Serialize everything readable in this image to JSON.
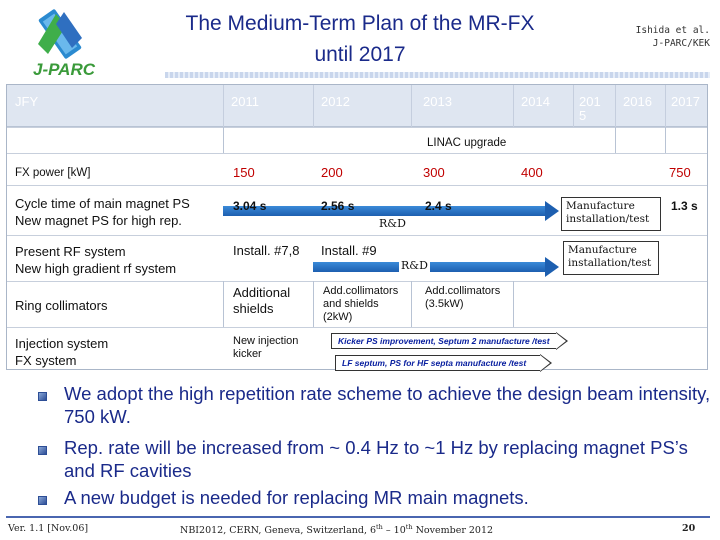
{
  "header": {
    "logo_text": "J-PARC",
    "title_line1": "The Medium-Term Plan of the MR-FX",
    "title_line2": "until 2017",
    "author_line1": "Ishida et al.",
    "author_line2": "J-PARC/KEK"
  },
  "table": {
    "header": {
      "jfy": "JFY",
      "y2011": "2011",
      "y2012": "2012",
      "y2013": "2013",
      "y2014": "2014",
      "y2015a": "201",
      "y2015b": "5",
      "y2016": "2016",
      "y2017": "2017"
    },
    "linac": "LINAC upgrade",
    "rows": {
      "fx_power": {
        "label": "FX power [kW]",
        "v2011": "150",
        "v2012": "200",
        "v2013": "300",
        "v2014": "400",
        "v2017": "750"
      },
      "cycle": {
        "label1": "Cycle time of main magnet PS",
        "label2": "New magnet PS for high rep.",
        "v2011": "3.04 s",
        "v2012": "2.56 s",
        "v2013": "2.4 s",
        "rd": "R&D",
        "box1": "Manufacture",
        "box2": "installation/test",
        "v2017": "1.3 s"
      },
      "rf": {
        "label1": "Present RF system",
        "label2": "New high gradient rf system",
        "v2011": "Install. #7,8",
        "v2012": "Install. #9",
        "rd": "R&D",
        "box1": "Manufacture",
        "box2": "installation/test"
      },
      "ring": {
        "label": "Ring collimators",
        "c2011a": "Additional",
        "c2011b": "shields",
        "c2012a": "Add.collimators",
        "c2012b": "and shields",
        "c2012c": "(2kW)",
        "c2013a": "Add.collimators",
        "c2013b": "(3.5kW)"
      },
      "injection": {
        "label1": "Injection system",
        "label2": "FX system",
        "c2011a": "New injection",
        "c2011b": "kicker",
        "kicker": "Kicker PS improvement, Septum 2 manufacture /test",
        "lf": "LF septum, PS for HF septa manufacture /test"
      }
    }
  },
  "bullets": [
    "We adopt the high repetition rate scheme to achieve the design beam intensity, 750 kW.",
    "Rep. rate will be increased from ~ 0.4 Hz to ~1 Hz by replacing magnet PS’s and RF cavities",
    "A new budget is needed for replacing MR main magnets."
  ],
  "footer": {
    "version": "Ver. 1.1 [Nov.06]",
    "event_pre": "NBI2012, CERN, Geneva, Switzerland, 6",
    "sup1": "th",
    "event_mid": " – 10",
    "sup2": "th",
    "event_post": " November 2012",
    "page": "20"
  },
  "colors": {
    "title": "#1a2a8a",
    "arrow": "#1d5fb0",
    "red_value": "#c00000",
    "kicker_text": "#0a20a0"
  }
}
